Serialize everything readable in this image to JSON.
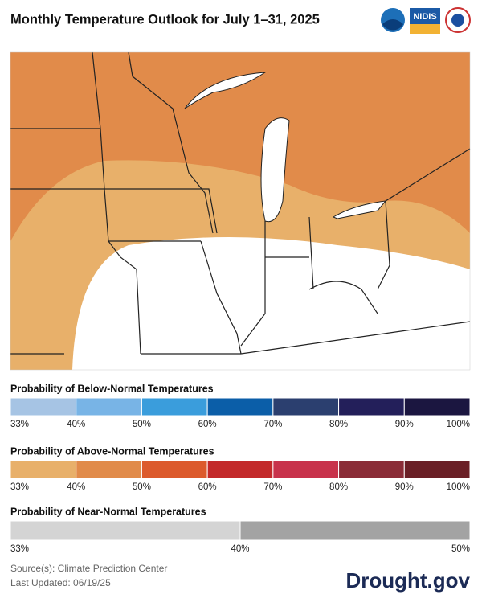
{
  "title": "Monthly Temperature Outlook for July 1–31, 2025",
  "logos": {
    "nidis": "NIDIS"
  },
  "legends": [
    {
      "title": "Probability of Below-Normal Temperatures",
      "colors": [
        "#a6c4e4",
        "#78b4e6",
        "#3a9ddc",
        "#0b5ea8",
        "#2b3f6f",
        "#231f5a",
        "#1b1640"
      ],
      "ticks": [
        "33%",
        "40%",
        "50%",
        "60%",
        "70%",
        "80%",
        "90%",
        "100%"
      ]
    },
    {
      "title": "Probability of Above-Normal Temperatures",
      "colors": [
        "#e8b06a",
        "#e18b4a",
        "#dc5a2c",
        "#c3292a",
        "#c8324b",
        "#8a2c37",
        "#6a1f26"
      ],
      "ticks": [
        "33%",
        "40%",
        "50%",
        "60%",
        "70%",
        "80%",
        "90%",
        "100%"
      ]
    },
    {
      "title": "Probability of Near-Normal Temperatures",
      "colors": [
        "#d4d4d4",
        "#a3a3a3"
      ],
      "ticks": [
        "33%",
        "40%",
        "50%"
      ]
    }
  ],
  "source": "Source(s): Climate Prediction Center",
  "updated": "Last Updated: 06/19/25",
  "brand": "Drought.gov"
}
